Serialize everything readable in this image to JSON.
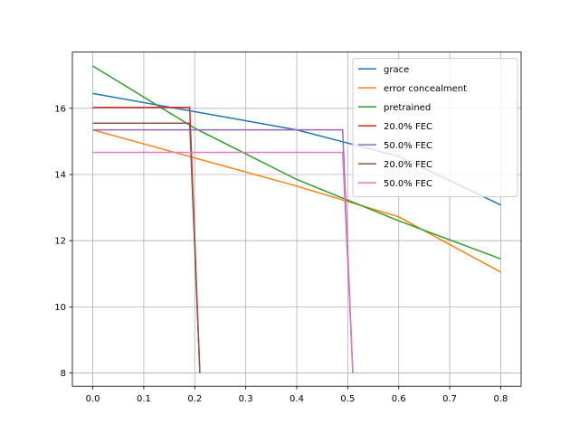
{
  "chart_data": {
    "type": "line",
    "title": "",
    "xlabel": "",
    "ylabel": "",
    "xlim": [
      -0.04,
      0.84
    ],
    "ylim": [
      7.6,
      17.7
    ],
    "xticks": [
      0.0,
      0.1,
      0.2,
      0.3,
      0.4,
      0.5,
      0.6,
      0.7,
      0.8
    ],
    "xtick_labels": [
      "0.0",
      "0.1",
      "0.2",
      "0.3",
      "0.4",
      "0.5",
      "0.6",
      "0.7",
      "0.8"
    ],
    "yticks": [
      8,
      10,
      12,
      14,
      16
    ],
    "ytick_labels": [
      "8",
      "10",
      "12",
      "14",
      "16"
    ],
    "grid": true,
    "legend_position": "top-right",
    "series": [
      {
        "name": "grace",
        "color": "#1f77b4",
        "x": [
          0.0,
          0.2,
          0.4,
          0.6,
          0.8
        ],
        "y": [
          16.45,
          15.9,
          15.35,
          14.55,
          13.08
        ]
      },
      {
        "name": "error concealment",
        "color": "#ff7f0e",
        "x": [
          0.0,
          0.2,
          0.4,
          0.6,
          0.8
        ],
        "y": [
          15.35,
          14.5,
          13.65,
          12.72,
          11.05
        ]
      },
      {
        "name": "pretrained",
        "color": "#2ca02c",
        "x": [
          0.0,
          0.2,
          0.4,
          0.6,
          0.8
        ],
        "y": [
          17.28,
          15.4,
          13.85,
          12.6,
          11.45
        ]
      },
      {
        "name": "20.0% FEC",
        "color": "#d62728",
        "x": [
          0.0,
          0.19,
          0.21
        ],
        "y": [
          16.03,
          16.03,
          8.0
        ]
      },
      {
        "name": "50.0% FEC",
        "color": "#9467bd",
        "x": [
          0.0,
          0.49,
          0.51
        ],
        "y": [
          15.35,
          15.35,
          8.0
        ]
      },
      {
        "name": "20.0% FEC",
        "color": "#8c564b",
        "x": [
          0.0,
          0.19,
          0.21
        ],
        "y": [
          15.55,
          15.55,
          8.0
        ]
      },
      {
        "name": "50.0% FEC",
        "color": "#e377c2",
        "x": [
          0.0,
          0.49,
          0.51
        ],
        "y": [
          14.67,
          14.67,
          8.0
        ]
      }
    ]
  }
}
